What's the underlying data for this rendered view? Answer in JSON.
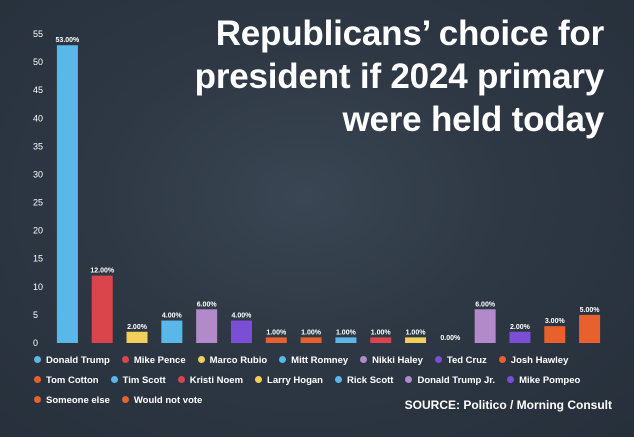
{
  "chart_data": {
    "type": "bar",
    "title_lines": [
      "Republicans’ choice for",
      "president if 2024 primary",
      "were held today"
    ],
    "source": "SOURCE: Politico / Morning Consult",
    "ylim": [
      0,
      55
    ],
    "yticks": [
      "0",
      "5",
      "10",
      "15",
      "20",
      "25",
      "30",
      "35",
      "40",
      "45",
      "50",
      "55"
    ],
    "grid": false,
    "legend_position": "bottom",
    "categories": [
      "Donald Trump",
      "Mike Pence",
      "Marco Rubio",
      "Mitt Romney",
      "Nikki Haley",
      "Ted Cruz",
      "Josh Hawley",
      "Tom Cotton",
      "Tim Scott",
      "Kristi Noem",
      "Larry Hogan",
      "Rick Scott",
      "Donald Trump Jr.",
      "Mike Pompeo",
      "Someone else",
      "Would not vote"
    ],
    "values": [
      53,
      12,
      2,
      4,
      6,
      4,
      1,
      1,
      1,
      1,
      1,
      0,
      6,
      2,
      3,
      5
    ],
    "value_labels": [
      "53.00%",
      "12.00%",
      "2.00%",
      "4.00%",
      "6.00%",
      "4.00%",
      "1.00%",
      "1.00%",
      "1.00%",
      "1.00%",
      "1.00%",
      "0.00%",
      "6.00%",
      "2.00%",
      "3.00%",
      "5.00%"
    ],
    "colors": [
      "#5ab8e8",
      "#d9454a",
      "#f2cf5b",
      "#5ab8e8",
      "#b28ac9",
      "#7a4fd6",
      "#e8602c",
      "#e8602c",
      "#5ab8e8",
      "#d9454a",
      "#f2cf5b",
      "#5ab8e8",
      "#b28ac9",
      "#7a4fd6",
      "#e8602c",
      "#e8602c"
    ]
  }
}
